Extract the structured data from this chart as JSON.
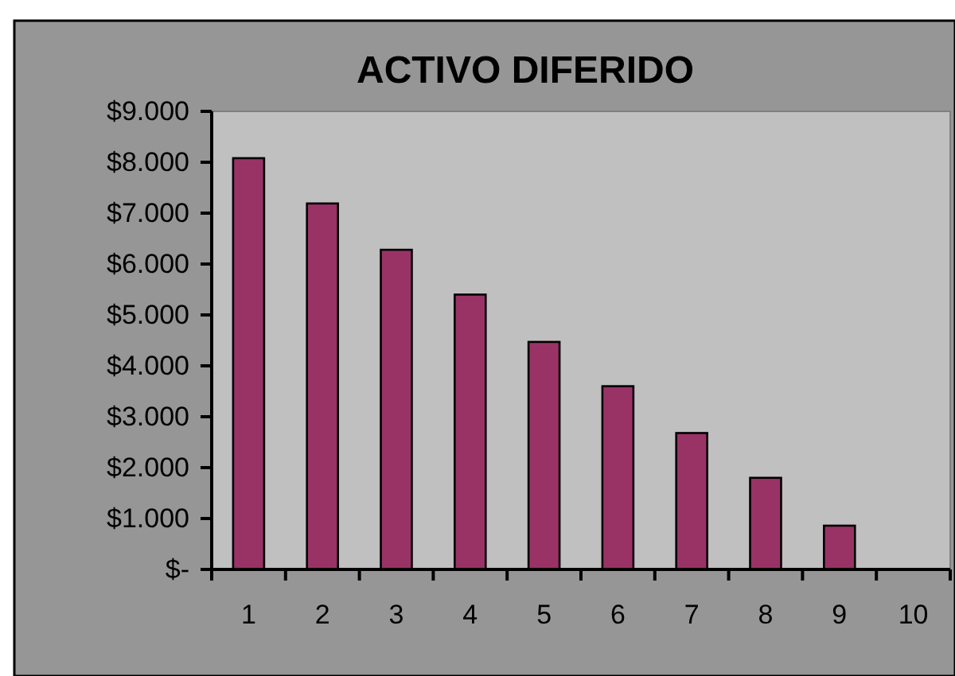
{
  "chart_data": {
    "type": "bar",
    "title": "ACTIVO DIFERIDO",
    "categories": [
      "1",
      "2",
      "3",
      "4",
      "5",
      "6",
      "7",
      "8",
      "9",
      "10"
    ],
    "values": [
      8080,
      7190,
      6280,
      5400,
      4470,
      3600,
      2680,
      1800,
      860,
      0
    ],
    "color": "#993366",
    "ylim": [
      0,
      9000
    ],
    "yticks": [
      {
        "value": 0,
        "label": "$-"
      },
      {
        "value": 1000,
        "label": "$1.000"
      },
      {
        "value": 2000,
        "label": "$2.000"
      },
      {
        "value": 3000,
        "label": "$3.000"
      },
      {
        "value": 4000,
        "label": "$4.000"
      },
      {
        "value": 5000,
        "label": "$5.000"
      },
      {
        "value": 6000,
        "label": "$6.000"
      },
      {
        "value": 7000,
        "label": "$7.000"
      },
      {
        "value": 8000,
        "label": "$8.000"
      },
      {
        "value": 9000,
        "label": "$9.000"
      }
    ],
    "grid": false
  }
}
